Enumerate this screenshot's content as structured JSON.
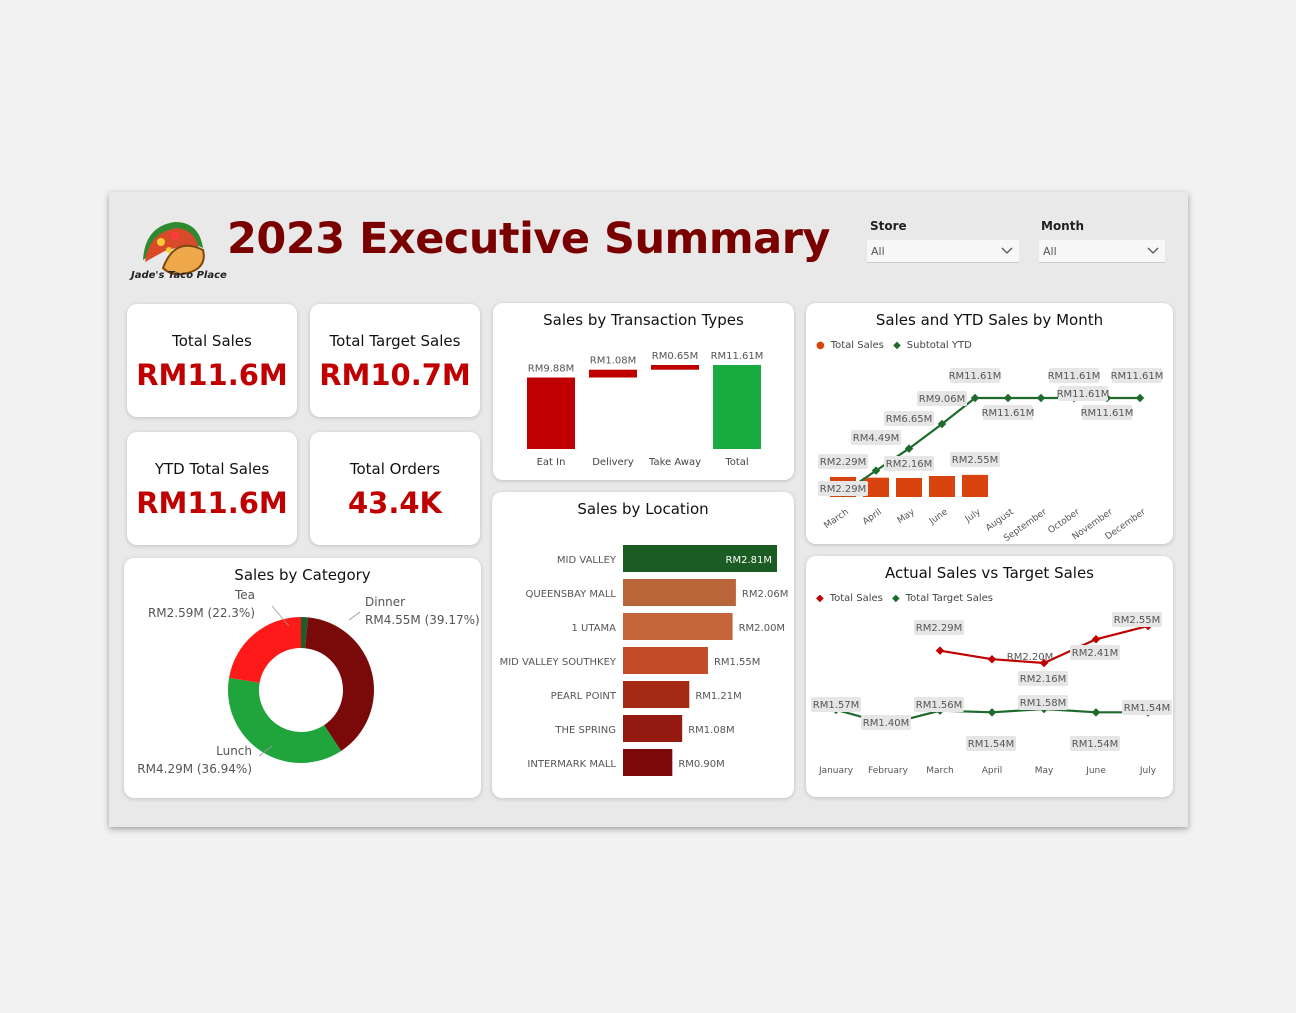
{
  "header": {
    "title": "2023 Executive Summary",
    "logo_text": "Jade's Taco Place",
    "slicers": [
      {
        "label": "Store",
        "value": "All"
      },
      {
        "label": "Month",
        "value": "All"
      }
    ]
  },
  "kpis": [
    {
      "label": "Total Sales",
      "value": "RM11.6M"
    },
    {
      "label": "Total Target Sales",
      "value": "RM10.7M"
    },
    {
      "label": "YTD Total Sales",
      "value": "RM11.6M"
    },
    {
      "label": "Total Orders",
      "value": "43.4K"
    }
  ],
  "colors": {
    "accent_red": "#c00000",
    "dark_red": "#7a0000",
    "green": "#1aab40",
    "dark_green": "#1e6b2c",
    "orange": "#d9440e"
  },
  "chart_data": [
    {
      "type": "bar",
      "id": "waterfall",
      "title": "Sales by Transaction Types",
      "categories": [
        "Eat In",
        "Delivery",
        "Take Away",
        "Total"
      ],
      "values": [
        9.88,
        1.08,
        0.65,
        11.61
      ],
      "labels": [
        "RM9.88M",
        "RM1.08M",
        "RM0.65M",
        "RM11.61M"
      ],
      "unit": "RM millions"
    },
    {
      "type": "bar",
      "id": "location",
      "title": "Sales by Location",
      "categories": [
        "MID VALLEY",
        "QUEENSBAY MALL",
        "1 UTAMA",
        "MID VALLEY SOUTHKEY",
        "PEARL POINT",
        "THE SPRING",
        "INTERMARK MALL"
      ],
      "values": [
        2.81,
        2.06,
        2.0,
        1.55,
        1.21,
        1.08,
        0.9
      ],
      "labels": [
        "RM2.81M",
        "RM2.06M",
        "RM2.00M",
        "RM1.55M",
        "RM1.21M",
        "RM1.08M",
        "RM0.90M"
      ],
      "colors": [
        "#1a5c24",
        "#b9653a",
        "#c4663a",
        "#c44b28",
        "#a52a16",
        "#951a12",
        "#7d0a0a"
      ]
    },
    {
      "type": "pie",
      "id": "category",
      "title": "Sales by Category",
      "slices": [
        {
          "name": "Dinner",
          "value": 4.55,
          "pct": 39.17,
          "label": "RM4.55M (39.17%)",
          "color": "#7a0a0a"
        },
        {
          "name": "Lunch",
          "value": 4.29,
          "pct": 36.94,
          "label": "RM4.29M (36.94%)",
          "color": "#1fa53c"
        },
        {
          "name": "Tea",
          "value": 2.59,
          "pct": 22.3,
          "label": "RM2.59M (22.3%)",
          "color": "#ff1a1a"
        },
        {
          "name": "",
          "value": 0.18,
          "pct": 1.59,
          "label": "",
          "color": "#1e5c2a"
        }
      ]
    },
    {
      "type": "bar",
      "id": "ytd",
      "title": "Sales and YTD Sales by Month",
      "legend": [
        "Total Sales",
        "Subtotal YTD"
      ],
      "categories": [
        "March",
        "April",
        "May",
        "June",
        "July",
        "August",
        "September",
        "October",
        "November",
        "December"
      ],
      "series": [
        {
          "name": "Total Sales",
          "values": [
            2.29,
            2.2,
            2.16,
            2.41,
            2.55,
            null,
            null,
            null,
            null,
            null
          ],
          "labels": [
            "RM2.29M",
            "",
            "RM2.16M",
            "",
            "RM2.55M",
            "",
            "",
            "",
            "",
            ""
          ],
          "color": "#d9440e"
        },
        {
          "name": "Subtotal YTD",
          "values": [
            2.29,
            4.49,
            6.65,
            9.06,
            11.61,
            11.61,
            11.61,
            11.61,
            11.61,
            11.61
          ],
          "labels": [
            "RM2.29M",
            "RM4.49M",
            "RM6.65M",
            "RM9.06M",
            "RM11.61M",
            "RM11.61M",
            "RM11.61M",
            "RM11.61M",
            "RM11.61M",
            "RM11.61M"
          ],
          "color": "#1e6b2c"
        }
      ]
    },
    {
      "type": "line",
      "id": "actual_target",
      "title": "Actual Sales vs Target Sales",
      "legend": [
        "Total Sales",
        "Total Target Sales"
      ],
      "categories": [
        "January",
        "February",
        "March",
        "April",
        "May",
        "June",
        "July"
      ],
      "series": [
        {
          "name": "Total Sales",
          "values": [
            null,
            null,
            2.29,
            2.2,
            2.16,
            2.41,
            2.55
          ],
          "labels": [
            "",
            "",
            "RM2.29M",
            "",
            "RM2.16M",
            "RM2.41M",
            "RM2.55M"
          ],
          "color": "#c00000"
        },
        {
          "name": "Total Target Sales",
          "values": [
            1.57,
            1.4,
            1.56,
            1.54,
            1.58,
            1.54,
            1.54
          ],
          "labels": [
            "RM1.57M",
            "RM1.40M",
            "RM1.56M",
            "RM1.54M",
            "RM1.58M",
            "RM1.54M",
            "RM1.54M"
          ],
          "color": "#1e6b2c"
        }
      ],
      "extra_label": "RM2.20M"
    }
  ]
}
